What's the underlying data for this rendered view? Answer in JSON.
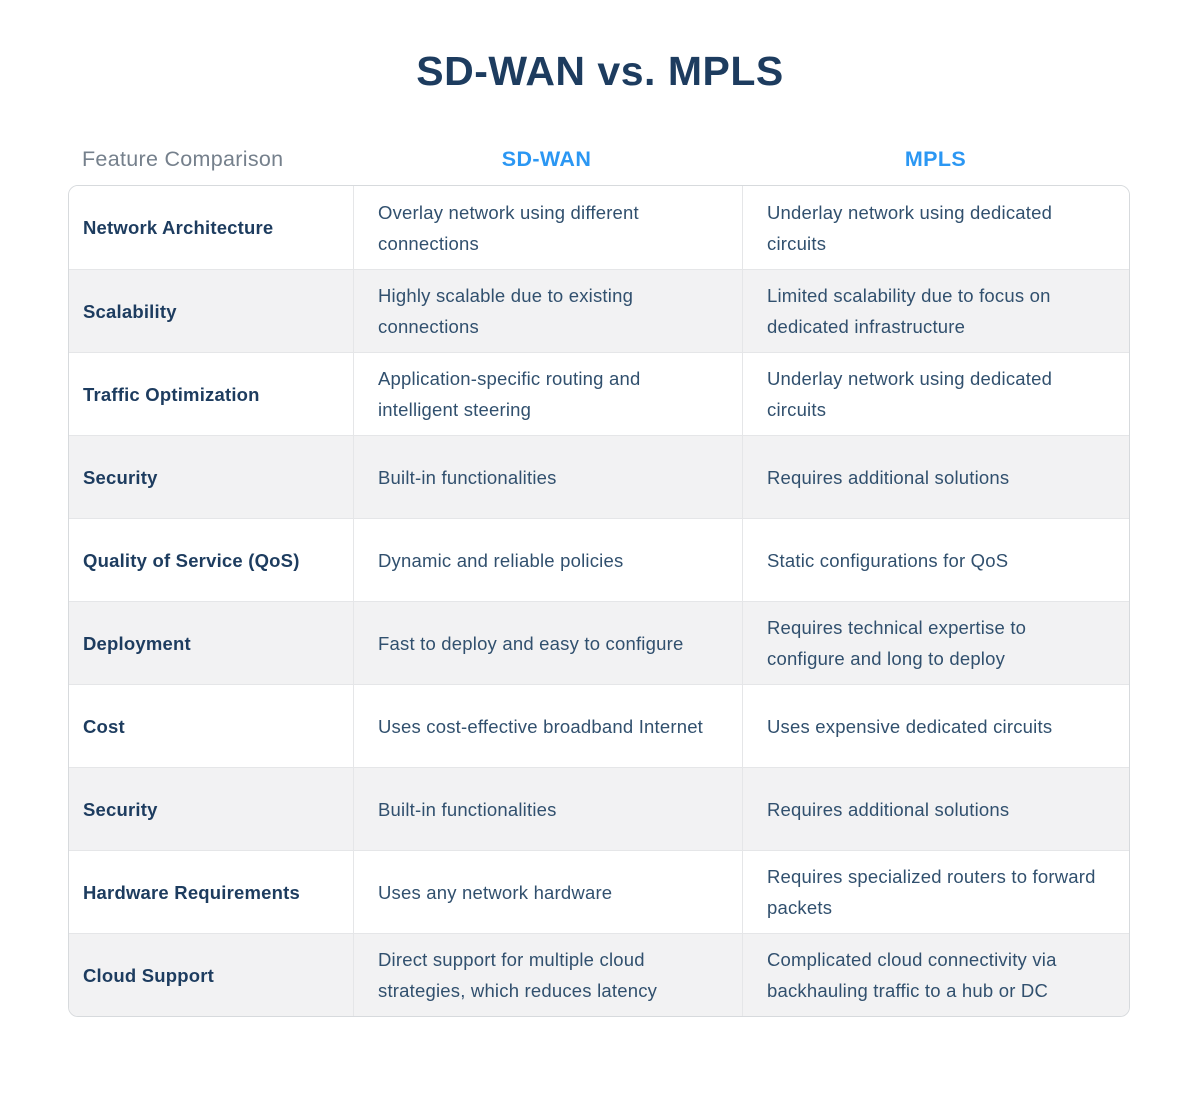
{
  "colors": {
    "title_navy": "#1D3C5F",
    "accent_blue": "#2B97F3",
    "feature_header_gray": "#75808C",
    "cell_text": "#31506E",
    "alternating_row_bg": "#F2F2F3",
    "border": "#E5E6E8"
  },
  "chart_data": {
    "type": "table",
    "title": "SD-WAN vs. MPLS",
    "columns": [
      "Feature Comparison",
      "SD-WAN",
      "MPLS"
    ],
    "rows": [
      [
        "Network Architecture",
        "Overlay network using different connections",
        "Underlay network using dedicated circuits"
      ],
      [
        "Scalability",
        "Highly scalable due to existing connections",
        "Limited scalability due to focus on dedicated infrastructure"
      ],
      [
        "Traffic Optimization",
        "Application-specific routing and intelligent steering",
        "Underlay network using dedicated circuits"
      ],
      [
        "Security",
        "Built-in functionalities",
        "Requires additional solutions"
      ],
      [
        "Quality of Service (QoS)",
        "Dynamic and reliable policies",
        "Static configurations for QoS"
      ],
      [
        "Deployment",
        "Fast to deploy and easy to configure",
        "Requires technical expertise to configure and long to deploy"
      ],
      [
        "Cost",
        "Uses cost-effective broadband Internet",
        "Uses expensive dedicated circuits"
      ],
      [
        "Security",
        "Built-in functionalities",
        "Requires additional solutions"
      ],
      [
        "Hardware Requirements",
        "Uses any network hardware",
        "Requires specialized routers to forward packets"
      ],
      [
        "Cloud Support",
        "Direct support for multiple cloud strategies, which reduces latency",
        "Complicated cloud connectivity via backhauling traffic to a hub or DC"
      ]
    ],
    "layout": {
      "alternating_row_colors": true,
      "first_row_bg": "white",
      "header_outside_table": true,
      "legend_position": "none",
      "grid": "cell-borders"
    }
  }
}
